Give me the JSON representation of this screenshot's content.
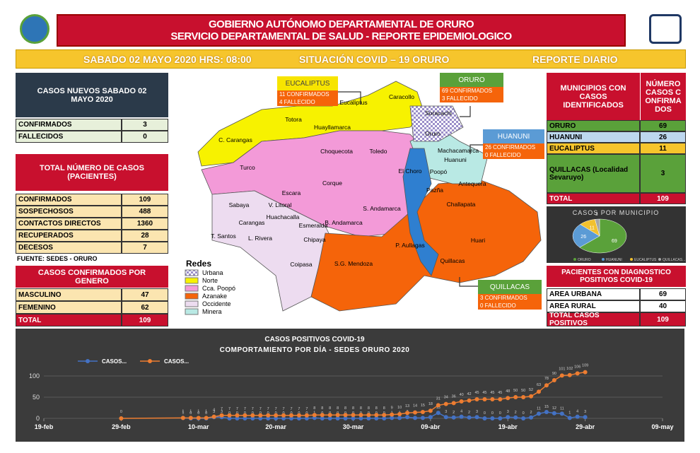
{
  "header": {
    "title": "GOBIERNO AUTÓNOMO DEPARTAMENTAL DE ORURO",
    "subtitle": "SERVICIO DEPARTAMENTAL DE SALUD - REPORTE EPIDEMIOLOGICO",
    "date": "SABADO 02 MAYO 2020 HRS: 08:00",
    "situation": "SITUACIÓN COVID – 19 ORURO",
    "report": "REPORTE DIARIO"
  },
  "new_cases": {
    "title": "CASOS NUEVOS SABADO 02 MAYO 2020",
    "rows": [
      [
        "CONFIRMADOS",
        3
      ],
      [
        "FALLECIDOS",
        0
      ]
    ]
  },
  "totals": {
    "title": "TOTAL NÚMERO DE CASOS (PACIENTES)",
    "rows": [
      [
        "CONFIRMADOS",
        109
      ],
      [
        "SOSPECHOSOS",
        488
      ],
      [
        "CONTACTOS DIRECTOS",
        1360
      ],
      [
        "RECUPERADOS",
        28
      ],
      [
        "DECESOS",
        7
      ]
    ],
    "source": "FUENTE: SEDES - ORURO"
  },
  "gender": {
    "title": "CASOS CONFIRMADOS POR GENERO",
    "rows": [
      [
        "MASCULINO",
        47
      ],
      [
        "FEMENINO",
        62
      ],
      [
        "TOTAL",
        109
      ]
    ]
  },
  "municipalities": {
    "header": [
      "MUNICIPIOS CON CASOS IDENTIFICADOS",
      "NÚMERO CASOS CONFIRMADOS"
    ],
    "rows": [
      [
        "ORURO",
        69
      ],
      [
        "HUANUNI",
        26
      ],
      [
        "EUCALIPTUS",
        11
      ],
      [
        "QUILLACAS (Localidad Sevaruyo)",
        3
      ],
      [
        "TOTAL",
        109
      ]
    ]
  },
  "diagnosis": {
    "title": "PACIENTES CON DIAGNOSTICO POSITIVOS COVID-19",
    "rows": [
      [
        "AREA URBANA",
        69
      ],
      [
        "AREA RURAL",
        40
      ],
      [
        "TOTAL CASOS POSITIVOS",
        109
      ]
    ]
  },
  "map": {
    "labels": [
      "Caracollo",
      "Eucaliptus",
      "Soracachi",
      "Totora",
      "Huayllamarca",
      "Oruro",
      "C. Carangas",
      "Choquecota",
      "Toledo",
      "Machacamarca",
      "Huanuni",
      "El Choro",
      "Turco",
      "Poopó",
      "Corque",
      "Antequera",
      "Pazña",
      "Escara",
      "Sabaya",
      "V. Litoral",
      "S. Andamarca",
      "Challapata",
      "Huachacalla",
      "Carangas",
      "Esmeralda",
      "B. Andamarca",
      "T. Santos",
      "L. Rivera",
      "Chipaya",
      "Huari",
      "P. Aullagas",
      "Quillacas",
      "S.G. Mendoza",
      "Coipasa"
    ],
    "legend_title": "Redes",
    "legend": [
      "Urbana",
      "Norte",
      "Cca. Poopó",
      "Azanake",
      "Occidente",
      "Minera"
    ],
    "callouts": [
      {
        "title": "EUCALIPTUS",
        "lines": [
          "11 CONFIRMADOS",
          "4 FALLECIDO"
        ]
      },
      {
        "title": "ORURO",
        "lines": [
          "69 CONFIRMADOS",
          "3 FALLECIDO"
        ]
      },
      {
        "title": "HUANUNI",
        "lines": [
          "26 CONFIRMADOS",
          "0 FALLECIDO"
        ]
      },
      {
        "title": "QUILLACAS",
        "lines": [
          "3 CONFIRMADOS",
          "0 FALLECIDO"
        ]
      }
    ]
  },
  "chart_data": [
    {
      "type": "pie",
      "title": "CASOS POR MUNICIPIO",
      "categories": [
        "ORURO",
        "HUANUNI",
        "EUCALIPTUS",
        "QUILLACAS..."
      ],
      "values": [
        69,
        26,
        11,
        3
      ],
      "colors": [
        "#5aa13a",
        "#5b9bd5",
        "#f2c12e",
        "#a5a5a5"
      ]
    },
    {
      "type": "line",
      "title": "CASOS POSITIVOS COVID-19",
      "subtitle": "COMPORTAMIENTO POR DÍA - SEDES ORURO 2020",
      "x": [
        10,
        18,
        19,
        20,
        21,
        22,
        23,
        24,
        25,
        26,
        27,
        28,
        29,
        30,
        31,
        32,
        33,
        34,
        35,
        36,
        37,
        38,
        39,
        40,
        41,
        42,
        43,
        44,
        45,
        46,
        47,
        48,
        49,
        50,
        51,
        52,
        53,
        54,
        55,
        56,
        57,
        58,
        59,
        60,
        61,
        62,
        63,
        64,
        65,
        66,
        67,
        68,
        69,
        70
      ],
      "series": [
        {
          "name": "CASOS...",
          "color": "#4472c4",
          "values": [
            null,
            1,
            0,
            0,
            0,
            3,
            3,
            0,
            0,
            0,
            0,
            0,
            0,
            0,
            0,
            0,
            0,
            0,
            1,
            0,
            0,
            0,
            0,
            0,
            0,
            0,
            0,
            0,
            1,
            1,
            3,
            1,
            1,
            3,
            13,
            3,
            2,
            4,
            2,
            3,
            0,
            0,
            0,
            3,
            2,
            0,
            2,
            11,
            15,
            12,
            11,
            1,
            4,
            3
          ]
        },
        {
          "name": "CASOS...",
          "color": "#ed7d31",
          "values": [
            0,
            1,
            1,
            1,
            1,
            4,
            7,
            7,
            7,
            7,
            7,
            7,
            7,
            7,
            7,
            7,
            7,
            7,
            8,
            8,
            8,
            8,
            8,
            8,
            8,
            8,
            8,
            8,
            9,
            10,
            13,
            14,
            15,
            18,
            31,
            34,
            36,
            40,
            42,
            45,
            45,
            45,
            45,
            48,
            50,
            50,
            52,
            63,
            78,
            90,
            101,
            102,
            106,
            109
          ]
        }
      ],
      "xlim": [
        0,
        80
      ],
      "xticks": [
        {
          "value": 0,
          "label": "19-feb"
        },
        {
          "value": 10,
          "label": "29-feb"
        },
        {
          "value": 20,
          "label": "10-mar"
        },
        {
          "value": 30,
          "label": "20-mar"
        },
        {
          "value": 40,
          "label": "30-mar"
        },
        {
          "value": 50,
          "label": "09-abr"
        },
        {
          "value": 60,
          "label": "19-abr"
        },
        {
          "value": 70,
          "label": "29-abr"
        },
        {
          "value": 80,
          "label": "09-may"
        }
      ],
      "ylim": [
        0,
        130
      ],
      "yticks": [
        0,
        50,
        100
      ],
      "grid": true
    }
  ]
}
